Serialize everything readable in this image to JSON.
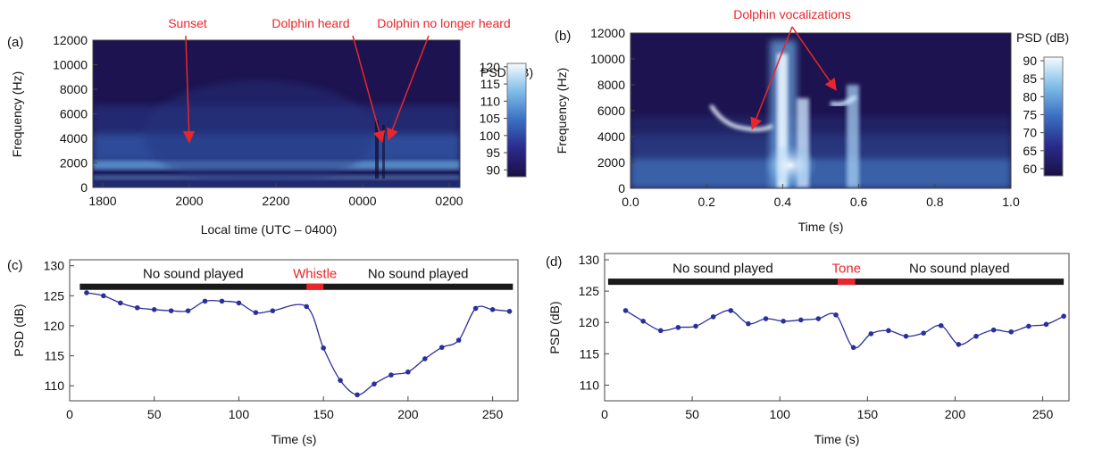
{
  "panels": {
    "a": {
      "label": "(a)"
    },
    "b": {
      "label": "(b)"
    },
    "c": {
      "label": "(c)"
    },
    "d": {
      "label": "(d)"
    }
  },
  "colors": {
    "annotation": "#e8262b",
    "line": "#2b2f99",
    "bar": "#1a1a1a",
    "spectrogram_low": "#1c1350",
    "spectrogram_high": "#ffffff"
  },
  "chart_data": [
    {
      "id": "a",
      "type": "heatmap",
      "xlabel": "Local time (UTC – 0400)",
      "ylabel": "Frequency (Hz)",
      "colorbar_label": "PSD (dB)",
      "xticks": [
        "1800",
        "2000",
        "2200",
        "0000",
        "0200"
      ],
      "yticks": [
        0,
        2000,
        4000,
        6000,
        8000,
        10000,
        12000
      ],
      "ylim": [
        0,
        12000
      ],
      "colorbar_ticks": [
        90,
        95,
        100,
        105,
        110,
        115,
        120
      ],
      "colorbar_range": [
        88,
        121
      ],
      "annotations": [
        {
          "text": "Sunset",
          "x_hours": 2.0,
          "y": 3700
        },
        {
          "text": "Dolphin heard",
          "x_hours": 6.45,
          "y": 3700
        },
        {
          "text": "Dolphin no longer heard",
          "x_hours": 6.6,
          "y": 3900
        }
      ]
    },
    {
      "id": "b",
      "type": "heatmap",
      "xlabel": "Time (s)",
      "ylabel": "Frequency (Hz)",
      "colorbar_label": "PSD (dB)",
      "xticks": [
        "0.0",
        "0.2",
        "0.4",
        "0.6",
        "0.8",
        "1.0"
      ],
      "xlim": [
        0,
        1.0
      ],
      "yticks": [
        0,
        2000,
        4000,
        6000,
        8000,
        10000,
        12000
      ],
      "ylim": [
        0,
        12000
      ],
      "colorbar_ticks": [
        60,
        65,
        70,
        75,
        80,
        85,
        90
      ],
      "colorbar_range": [
        58,
        91
      ],
      "annotations": [
        {
          "text": "Dolphin vocalizations",
          "targets": [
            {
              "x": 0.32,
              "y": 4600
            },
            {
              "x": 0.54,
              "y": 7600
            }
          ]
        }
      ]
    },
    {
      "id": "c",
      "type": "line",
      "xlabel": "Time (s)",
      "ylabel": "PSD (dB)",
      "xlim": [
        0,
        265
      ],
      "ylim": [
        107.5,
        131
      ],
      "xticks": [
        0,
        50,
        100,
        150,
        200,
        250
      ],
      "yticks": [
        110,
        115,
        120,
        125,
        130
      ],
      "bar": {
        "y": 126.5,
        "x": [
          6,
          262
        ],
        "highlight": [
          140,
          150
        ],
        "left_text": "No sound played",
        "mid_text": "Whistle",
        "right_text": "No sound played"
      },
      "x": [
        10,
        20,
        30,
        40,
        50,
        60,
        70,
        80,
        90,
        100,
        110,
        120,
        140,
        150,
        160,
        170,
        180,
        190,
        200,
        210,
        220,
        230,
        240,
        250,
        260
      ],
      "values": [
        125.5,
        125.0,
        123.8,
        123.0,
        122.7,
        122.5,
        122.5,
        124.1,
        124.1,
        123.8,
        122.2,
        122.5,
        123.2,
        116.3,
        110.9,
        108.5,
        110.3,
        111.8,
        112.3,
        114.5,
        116.4,
        117.6,
        122.9,
        122.7,
        122.4
      ]
    },
    {
      "id": "d",
      "type": "line",
      "xlabel": "Time (s)",
      "ylabel": "PSD (dB)",
      "xlim": [
        0,
        265
      ],
      "ylim": [
        107.5,
        131
      ],
      "xticks": [
        0,
        50,
        100,
        150,
        200,
        250
      ],
      "yticks": [
        110,
        115,
        120,
        125,
        130
      ],
      "bar": {
        "y": 126.5,
        "x": [
          2,
          262
        ],
        "highlight": [
          133,
          143
        ],
        "left_text": "No sound played",
        "mid_text": "Tone",
        "right_text": "No sound played"
      },
      "x": [
        12,
        22,
        32,
        42,
        52,
        62,
        72,
        82,
        92,
        102,
        112,
        122,
        132,
        142,
        152,
        162,
        172,
        182,
        192,
        202,
        212,
        222,
        232,
        242,
        252,
        262
      ],
      "values": [
        121.9,
        120.2,
        118.7,
        119.2,
        119.4,
        120.9,
        121.9,
        119.8,
        120.6,
        120.2,
        120.4,
        120.6,
        121.2,
        116.0,
        118.2,
        118.7,
        117.8,
        118.3,
        119.5,
        116.5,
        117.8,
        118.8,
        118.5,
        119.4,
        119.7,
        121.0
      ]
    }
  ]
}
